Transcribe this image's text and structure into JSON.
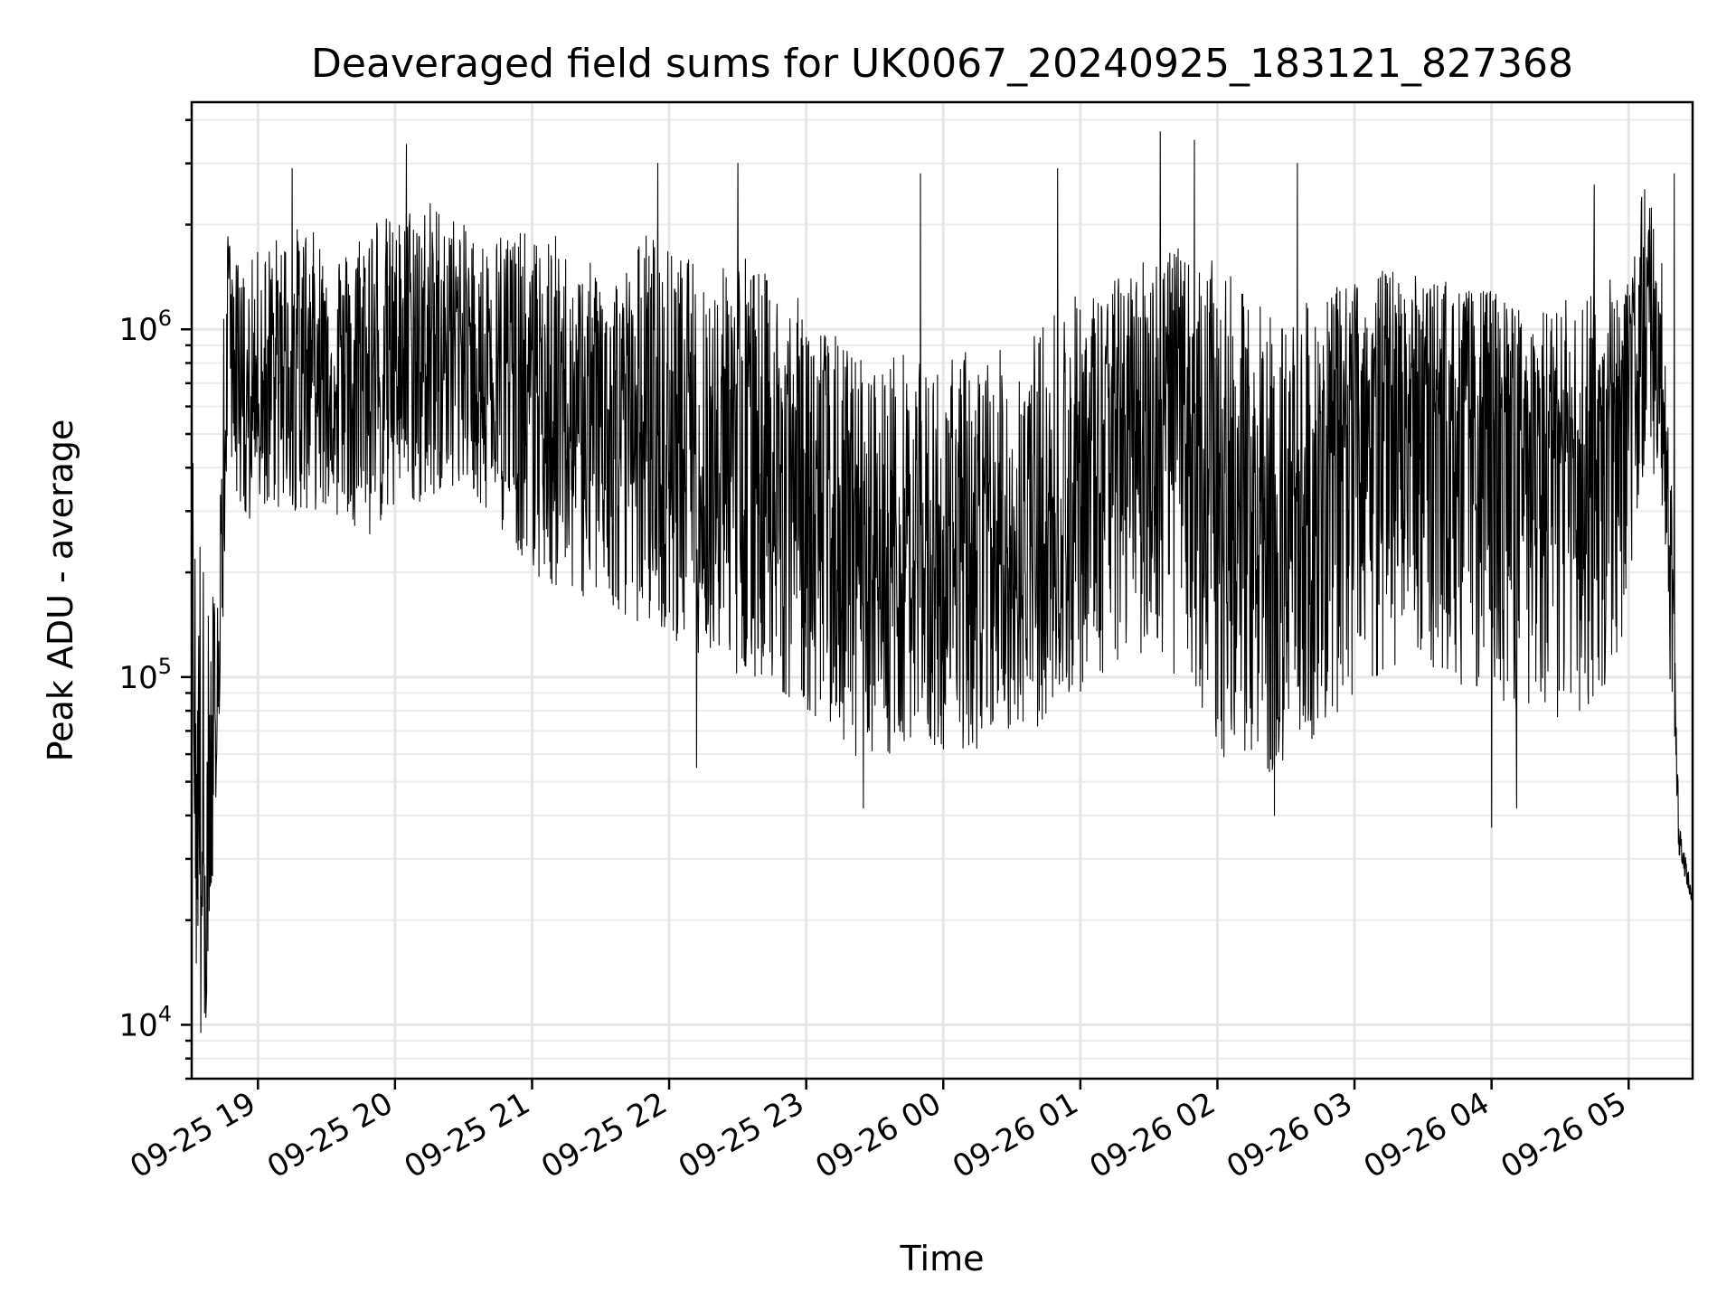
{
  "chart_data": {
    "type": "line",
    "title": "Deaveraged field sums for UK0067_20240925_183121_827368",
    "xlabel": "Time",
    "ylabel": "Peak ADU - average",
    "yscale": "log",
    "ylim": [
      7000,
      4500000
    ],
    "yticks": [
      10000,
      100000,
      1000000
    ],
    "ytick_labels": [
      {
        "base": "10",
        "exp": "4"
      },
      {
        "base": "10",
        "exp": "5"
      },
      {
        "base": "10",
        "exp": "6"
      }
    ],
    "xlim": [
      "2024-09-25 18:31",
      "2024-09-26 05:28"
    ],
    "xticks": [
      "2024-09-25 19:00",
      "2024-09-25 20:00",
      "2024-09-25 21:00",
      "2024-09-25 22:00",
      "2024-09-25 23:00",
      "2024-09-26 00:00",
      "2024-09-26 01:00",
      "2024-09-26 02:00",
      "2024-09-26 03:00",
      "2024-09-26 04:00",
      "2024-09-26 05:00"
    ],
    "xtick_labels": [
      "09-25 19",
      "09-25 20",
      "09-25 21",
      "09-25 22",
      "09-25 23",
      "09-26 00",
      "09-26 01",
      "09-26 02",
      "09-26 03",
      "09-26 04",
      "09-26 05"
    ],
    "grid": true,
    "legend": "none",
    "color": "#000000",
    "series": [
      {
        "values_description_omitted": false,
        "x": [
          "2024-09-25 18:31",
          "2024-09-25 18:33",
          "2024-09-25 18:35",
          "2024-09-25 18:37",
          "2024-09-25 18:39",
          "2024-09-25 18:41",
          "2024-09-25 18:43",
          "2024-09-25 18:45",
          "2024-09-25 18:47",
          "2024-09-25 18:50",
          "2024-09-25 18:55",
          "2024-09-25 19:00",
          "2024-09-25 19:10",
          "2024-09-25 19:20",
          "2024-09-25 19:30",
          "2024-09-25 19:40",
          "2024-09-25 19:50",
          "2024-09-25 20:00",
          "2024-09-25 20:10",
          "2024-09-25 20:20",
          "2024-09-25 20:30",
          "2024-09-25 20:40",
          "2024-09-25 20:50",
          "2024-09-25 21:00",
          "2024-09-25 21:10",
          "2024-09-25 21:20",
          "2024-09-25 21:30",
          "2024-09-25 21:40",
          "2024-09-25 21:50",
          "2024-09-25 22:00",
          "2024-09-25 22:10",
          "2024-09-25 22:20",
          "2024-09-25 22:30",
          "2024-09-25 22:40",
          "2024-09-25 22:50",
          "2024-09-25 23:00",
          "2024-09-25 23:10",
          "2024-09-25 23:20",
          "2024-09-25 23:30",
          "2024-09-25 23:40",
          "2024-09-25 23:50",
          "2024-09-26 00:00",
          "2024-09-26 00:10",
          "2024-09-26 00:20",
          "2024-09-26 00:30",
          "2024-09-26 00:40",
          "2024-09-26 00:50",
          "2024-09-26 01:00",
          "2024-09-26 01:10",
          "2024-09-26 01:20",
          "2024-09-26 01:30",
          "2024-09-26 01:40",
          "2024-09-26 01:50",
          "2024-09-26 02:00",
          "2024-09-26 02:10",
          "2024-09-26 02:20",
          "2024-09-26 02:30",
          "2024-09-26 02:40",
          "2024-09-26 02:50",
          "2024-09-26 03:00",
          "2024-09-26 03:10",
          "2024-09-26 03:20",
          "2024-09-26 03:30",
          "2024-09-26 03:40",
          "2024-09-26 03:50",
          "2024-09-26 04:00",
          "2024-09-26 04:10",
          "2024-09-26 04:20",
          "2024-09-26 04:30",
          "2024-09-26 04:40",
          "2024-09-26 04:50",
          "2024-09-26 05:00",
          "2024-09-26 05:05",
          "2024-09-26 05:10",
          "2024-09-26 05:15",
          "2024-09-26 05:18",
          "2024-09-26 05:22",
          "2024-09-26 05:25",
          "2024-09-26 05:28"
        ],
        "values": [
          400000,
          15000,
          200000,
          9500,
          25000,
          30000,
          150000,
          200000,
          1500000,
          900000,
          500000,
          700000,
          800000,
          900000,
          750000,
          800000,
          700000,
          900000,
          850000,
          950000,
          1000000,
          800000,
          700000,
          700000,
          500000,
          600000,
          550000,
          500000,
          450000,
          500000,
          450000,
          500000,
          400000,
          420000,
          350000,
          380000,
          250000,
          200000,
          180000,
          200000,
          220000,
          200000,
          180000,
          200000,
          220000,
          210000,
          250000,
          400000,
          500000,
          550000,
          600000,
          650000,
          550000,
          400000,
          300000,
          250000,
          280000,
          350000,
          420000,
          550000,
          600000,
          650000,
          700000,
          600000,
          550000,
          600000,
          500000,
          450000,
          400000,
          400000,
          450000,
          800000,
          1500000,
          900000,
          600000,
          400000,
          35000,
          28000,
          22000
        ],
        "envelope_high": [
          550000,
          300000,
          250000,
          200000,
          150000,
          220000,
          300000,
          1300000,
          1900000,
          1600000,
          1500000,
          1700000,
          1900000,
          2000000,
          1800000,
          1700000,
          2400000,
          2000000,
          2500000,
          2300000,
          2000000,
          1800000,
          2100000,
          1800000,
          1900000,
          1500000,
          1600000,
          1500000,
          2000000,
          1700000,
          1600000,
          1400000,
          1800000,
          1500000,
          1300000,
          1200000,
          1000000,
          900000,
          800000,
          900000,
          800000,
          800000,
          900000,
          850000,
          900000,
          1000000,
          1200000,
          1300000,
          1300000,
          1500000,
          1700000,
          1800000,
          1500000,
          1600000,
          1300000,
          1200000,
          1100000,
          1200000,
          1300000,
          1400000,
          1500000,
          1500000,
          1400000,
          1400000,
          1300000,
          1300000,
          1200000,
          1100000,
          1200000,
          1300000,
          1400000,
          1500000,
          2500000,
          2800000,
          1500000,
          600000,
          40000,
          30000,
          25000
        ],
        "envelope_low": [
          200000,
          15000,
          20000,
          9500,
          25000,
          25000,
          70000,
          150000,
          500000,
          350000,
          250000,
          300000,
          300000,
          300000,
          300000,
          280000,
          250000,
          300000,
          300000,
          350000,
          350000,
          300000,
          250000,
          200000,
          180000,
          170000,
          160000,
          150000,
          140000,
          130000,
          120000,
          110000,
          100000,
          100000,
          90000,
          80000,
          70000,
          60000,
          55000,
          60000,
          65000,
          60000,
          60000,
          65000,
          70000,
          70000,
          80000,
          90000,
          100000,
          110000,
          120000,
          100000,
          80000,
          60000,
          55000,
          50000,
          55000,
          60000,
          70000,
          80000,
          90000,
          100000,
          110000,
          100000,
          90000,
          90000,
          80000,
          70000,
          75000,
          80000,
          90000,
          150000,
          350000,
          400000,
          300000,
          100000,
          30000,
          26000,
          22000
        ],
        "spikes": [
          {
            "x": "2024-09-25 19:15",
            "y": 2900000
          },
          {
            "x": "2024-09-25 20:05",
            "y": 3400000
          },
          {
            "x": "2024-09-25 21:55",
            "y": 3000000
          },
          {
            "x": "2024-09-25 22:30",
            "y": 3000000
          },
          {
            "x": "2024-09-25 23:50",
            "y": 2800000
          },
          {
            "x": "2024-09-26 00:50",
            "y": 2900000
          },
          {
            "x": "2024-09-26 01:35",
            "y": 3700000
          },
          {
            "x": "2024-09-26 01:50",
            "y": 3500000
          },
          {
            "x": "2024-09-26 02:35",
            "y": 3000000
          },
          {
            "x": "2024-09-26 04:45",
            "y": 2600000
          },
          {
            "x": "2024-09-26 05:20",
            "y": 2800000
          },
          {
            "x": "2024-09-25 22:12",
            "y": 55000
          },
          {
            "x": "2024-09-25 23:25",
            "y": 42000
          },
          {
            "x": "2024-09-26 02:25",
            "y": 40000
          },
          {
            "x": "2024-09-26 04:00",
            "y": 37000
          },
          {
            "x": "2024-09-26 04:11",
            "y": 42000
          },
          {
            "x": "2024-09-25 18:35",
            "y": 9500
          }
        ]
      }
    ]
  }
}
